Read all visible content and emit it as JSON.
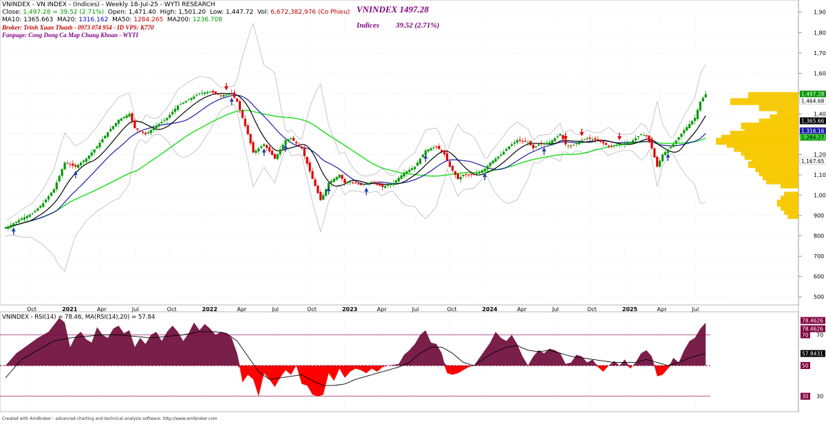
{
  "header": {
    "line1_prefix": "VNINDEX - VN INDEX - (Indices) - Weekly 18-Jul-25 - WYTI RESEARCH",
    "close_label": "Close: ",
    "close_value": "1,497.28  = 39.52  (2.71%)",
    "open": "Open:  1,471.40",
    "high": "High:  1,501.20",
    "low": "Low:  1,447.72",
    "vol_label": "Vol: ",
    "vol_value": "6,672,382,976 (Co Phieu)",
    "ma10_label": "MA10: ",
    "ma10": "1365.663",
    "ma20_label": "MA20: ",
    "ma20": "1316.162",
    "ma50_label": "MA50: ",
    "ma50": "1284.265",
    "ma200_label": "MA200: ",
    "ma200": "1236.708",
    "broker": "Broker: Trinh Xuan Thanh - 0973 074 954 - ID VPS: K770",
    "fanpage": "Fanpage: Cong Dong Ca Map Chung Khoan - WYTI"
  },
  "overlay": {
    "title": "VNINDEX 1497.28",
    "indices_label": "Indices",
    "indices_value": "39.52 (2.71%)"
  },
  "footer": "Created with AmiBroker - advanced charting and technical analysis software. http://www.amibroker.com",
  "colors": {
    "up": "#009900",
    "down": "#dd0000",
    "ma10": "#000000",
    "ma20": "#1a1aa8",
    "ma200": "#33dd33",
    "bands": "#b0b0b0",
    "volume_profile": "#f5c800",
    "rsi_fill_pos": "#7a1f4a",
    "rsi_fill_neg": "#ff0000"
  },
  "chart_data": [
    {
      "type": "candlestick",
      "title": "VNINDEX - VN INDEX - (Indices) - Weekly 18-Jul-25",
      "y_ticks": [
        500,
        600,
        700,
        800,
        900,
        1000,
        1100,
        1200,
        1300,
        1400,
        1500,
        1600,
        1700,
        1800,
        1900
      ],
      "y_tick_labels": [
        "500",
        "600",
        "700",
        "800",
        "900",
        "1,000",
        "1,100",
        "1,200",
        "1,300",
        "1,400",
        "1,500",
        "1,600",
        "1,700",
        "1,800",
        "1,900"
      ],
      "ylim": [
        460,
        1960
      ],
      "x_labels": [
        {
          "t": 9,
          "label": "Oct"
        },
        {
          "t": 22,
          "label": "2021"
        },
        {
          "t": 35,
          "label": "Apr"
        },
        {
          "t": 48,
          "label": "Jul"
        },
        {
          "t": 61,
          "label": "Oct"
        },
        {
          "t": 74,
          "label": "2022"
        },
        {
          "t": 87,
          "label": "Apr"
        },
        {
          "t": 100,
          "label": "Jul"
        },
        {
          "t": 113,
          "label": "Oct"
        },
        {
          "t": 126,
          "label": "2023"
        },
        {
          "t": 139,
          "label": "Apr"
        },
        {
          "t": 152,
          "label": "Jul"
        },
        {
          "t": 165,
          "label": "Oct"
        },
        {
          "t": 178,
          "label": "2024"
        },
        {
          "t": 191,
          "label": "Apr"
        },
        {
          "t": 204,
          "label": "Jul"
        },
        {
          "t": 217,
          "label": "Oct"
        },
        {
          "t": 230,
          "label": "2025"
        },
        {
          "t": 243,
          "label": "Apr"
        },
        {
          "t": 256,
          "label": "Jul"
        }
      ],
      "close_path": [
        [
          0,
          838
        ],
        [
          6,
          885
        ],
        [
          10,
          910
        ],
        [
          14,
          960
        ],
        [
          18,
          1030
        ],
        [
          22,
          1160
        ],
        [
          26,
          1140
        ],
        [
          30,
          1180
        ],
        [
          34,
          1240
        ],
        [
          38,
          1310
        ],
        [
          42,
          1370
        ],
        [
          46,
          1400
        ],
        [
          48,
          1330
        ],
        [
          52,
          1300
        ],
        [
          56,
          1340
        ],
        [
          60,
          1380
        ],
        [
          64,
          1440
        ],
        [
          68,
          1470
        ],
        [
          72,
          1500
        ],
        [
          76,
          1510
        ],
        [
          80,
          1490
        ],
        [
          84,
          1500
        ],
        [
          86,
          1460
        ],
        [
          88,
          1380
        ],
        [
          90,
          1300
        ],
        [
          92,
          1210
        ],
        [
          96,
          1250
        ],
        [
          100,
          1180
        ],
        [
          104,
          1270
        ],
        [
          106,
          1280
        ],
        [
          110,
          1230
        ],
        [
          114,
          1080
        ],
        [
          117,
          975
        ],
        [
          118,
          1000
        ],
        [
          120,
          1060
        ],
        [
          124,
          1100
        ],
        [
          126,
          1060
        ],
        [
          128,
          1065
        ],
        [
          132,
          1050
        ],
        [
          136,
          1065
        ],
        [
          140,
          1040
        ],
        [
          144,
          1060
        ],
        [
          148,
          1110
        ],
        [
          152,
          1140
        ],
        [
          156,
          1220
        ],
        [
          160,
          1240
        ],
        [
          163,
          1200
        ],
        [
          165,
          1140
        ],
        [
          168,
          1080
        ],
        [
          170,
          1100
        ],
        [
          174,
          1100
        ],
        [
          178,
          1130
        ],
        [
          180,
          1160
        ],
        [
          184,
          1200
        ],
        [
          187,
          1240
        ],
        [
          190,
          1270
        ],
        [
          194,
          1260
        ],
        [
          196,
          1230
        ],
        [
          198,
          1250
        ],
        [
          202,
          1260
        ],
        [
          206,
          1300
        ],
        [
          208,
          1250
        ],
        [
          210,
          1240
        ],
        [
          214,
          1270
        ],
        [
          216,
          1280
        ],
        [
          220,
          1270
        ],
        [
          224,
          1240
        ],
        [
          228,
          1250
        ],
        [
          232,
          1260
        ],
        [
          236,
          1300
        ],
        [
          238,
          1290
        ],
        [
          240,
          1230
        ],
        [
          242,
          1140
        ],
        [
          244,
          1200
        ],
        [
          248,
          1250
        ],
        [
          252,
          1320
        ],
        [
          256,
          1380
        ],
        [
          258,
          1460
        ],
        [
          260,
          1497
        ]
      ],
      "ma10": 1365.663,
      "ma20": 1316.162,
      "ma50": 1284.265,
      "ma200": 1236.708,
      "price_labels": [
        1497.28,
        1464.68,
        1365.66,
        1316.16,
        1284.27,
        1167.65
      ],
      "price_label_texts": [
        "1,497.28",
        "1,464.68",
        "1,365.66",
        "1,316.16",
        "1,284.27",
        "1,167.65"
      ],
      "volume_profile": [
        [
          1490,
          140
        ],
        [
          1460,
          190
        ],
        [
          1430,
          110
        ],
        [
          1400,
          60
        ],
        [
          1380,
          80
        ],
        [
          1360,
          110
        ],
        [
          1340,
          160
        ],
        [
          1320,
          150
        ],
        [
          1300,
          190
        ],
        [
          1280,
          215
        ],
        [
          1265,
          230
        ],
        [
          1250,
          200
        ],
        [
          1230,
          180
        ],
        [
          1210,
          160
        ],
        [
          1190,
          150
        ],
        [
          1170,
          130
        ],
        [
          1150,
          140
        ],
        [
          1130,
          120
        ],
        [
          1110,
          110
        ],
        [
          1090,
          100
        ],
        [
          1070,
          90
        ],
        [
          1050,
          50
        ],
        [
          1000,
          40
        ],
        [
          980,
          50
        ],
        [
          960,
          60
        ],
        [
          940,
          50
        ],
        [
          920,
          40
        ],
        [
          900,
          30
        ]
      ]
    },
    {
      "type": "area",
      "title": "VNINDEX - RSI(14) = 78.46, MA(RSI(14),20) = 57.84",
      "rsi": 78.46,
      "rsi_ma": 57.84,
      "levels": [
        30,
        50,
        70
      ],
      "value_labels": [
        "78.4626",
        "78.4626",
        "57.8431",
        "70",
        "50",
        "30"
      ],
      "level_tick_labels": [
        "30",
        "70"
      ],
      "rsi_path": [
        [
          0,
          50
        ],
        [
          4,
          58
        ],
        [
          8,
          63
        ],
        [
          12,
          68
        ],
        [
          16,
          72
        ],
        [
          20,
          81
        ],
        [
          22,
          78
        ],
        [
          24,
          62
        ],
        [
          26,
          69
        ],
        [
          28,
          72
        ],
        [
          30,
          67
        ],
        [
          32,
          65
        ],
        [
          34,
          75
        ],
        [
          36,
          70
        ],
        [
          38,
          68
        ],
        [
          40,
          74
        ],
        [
          42,
          76
        ],
        [
          44,
          71
        ],
        [
          46,
          73
        ],
        [
          48,
          62
        ],
        [
          50,
          68
        ],
        [
          52,
          64
        ],
        [
          54,
          70
        ],
        [
          56,
          72
        ],
        [
          58,
          66
        ],
        [
          60,
          72
        ],
        [
          62,
          76
        ],
        [
          64,
          72
        ],
        [
          66,
          66
        ],
        [
          68,
          71
        ],
        [
          70,
          78
        ],
        [
          72,
          73
        ],
        [
          74,
          77
        ],
        [
          76,
          74
        ],
        [
          78,
          70
        ],
        [
          80,
          72
        ],
        [
          82,
          71
        ],
        [
          84,
          68
        ],
        [
          86,
          58
        ],
        [
          88,
          39
        ],
        [
          90,
          44
        ],
        [
          92,
          41
        ],
        [
          94,
          30
        ],
        [
          96,
          45
        ],
        [
          98,
          41
        ],
        [
          100,
          36
        ],
        [
          102,
          42
        ],
        [
          104,
          47
        ],
        [
          106,
          44
        ],
        [
          108,
          50
        ],
        [
          110,
          38
        ],
        [
          112,
          37
        ],
        [
          114,
          31
        ],
        [
          116,
          30
        ],
        [
          118,
          31
        ],
        [
          120,
          45
        ],
        [
          122,
          40
        ],
        [
          124,
          48
        ],
        [
          126,
          42
        ],
        [
          128,
          46
        ],
        [
          130,
          48
        ],
        [
          132,
          47
        ],
        [
          134,
          45
        ],
        [
          136,
          48
        ],
        [
          138,
          46
        ],
        [
          140,
          49
        ],
        [
          142,
          50
        ],
        [
          146,
          51
        ],
        [
          148,
          57
        ],
        [
          150,
          60
        ],
        [
          152,
          64
        ],
        [
          154,
          70
        ],
        [
          156,
          73
        ],
        [
          158,
          65
        ],
        [
          160,
          64
        ],
        [
          162,
          58
        ],
        [
          164,
          45
        ],
        [
          166,
          44
        ],
        [
          168,
          45
        ],
        [
          170,
          47
        ],
        [
          172,
          49
        ],
        [
          174,
          50
        ],
        [
          176,
          55
        ],
        [
          178,
          60
        ],
        [
          180,
          65
        ],
        [
          182,
          72
        ],
        [
          184,
          68
        ],
        [
          186,
          66
        ],
        [
          188,
          70
        ],
        [
          190,
          64
        ],
        [
          192,
          56
        ],
        [
          194,
          50
        ],
        [
          196,
          56
        ],
        [
          198,
          60
        ],
        [
          200,
          58
        ],
        [
          202,
          61
        ],
        [
          204,
          60
        ],
        [
          206,
          58
        ],
        [
          208,
          51
        ],
        [
          210,
          52
        ],
        [
          212,
          57
        ],
        [
          214,
          56
        ],
        [
          216,
          52
        ],
        [
          218,
          54
        ],
        [
          220,
          49
        ],
        [
          222,
          46
        ],
        [
          224,
          50
        ],
        [
          226,
          53
        ],
        [
          228,
          50
        ],
        [
          230,
          54
        ],
        [
          232,
          48
        ],
        [
          234,
          52
        ],
        [
          236,
          58
        ],
        [
          238,
          60
        ],
        [
          240,
          56
        ],
        [
          242,
          43
        ],
        [
          244,
          44
        ],
        [
          246,
          48
        ],
        [
          248,
          55
        ],
        [
          250,
          52
        ],
        [
          252,
          60
        ],
        [
          254,
          66
        ],
        [
          256,
          68
        ],
        [
          258,
          74
        ],
        [
          260,
          78
        ]
      ],
      "rsi_ma_path": [
        [
          0,
          42
        ],
        [
          6,
          54
        ],
        [
          12,
          60
        ],
        [
          18,
          66
        ],
        [
          24,
          68
        ],
        [
          30,
          69
        ],
        [
          36,
          70
        ],
        [
          42,
          70
        ],
        [
          48,
          69
        ],
        [
          54,
          68
        ],
        [
          60,
          69
        ],
        [
          66,
          70
        ],
        [
          72,
          72
        ],
        [
          78,
          72
        ],
        [
          82,
          71
        ],
        [
          86,
          66
        ],
        [
          90,
          56
        ],
        [
          94,
          46
        ],
        [
          98,
          41
        ],
        [
          102,
          42
        ],
        [
          106,
          43
        ],
        [
          110,
          44
        ],
        [
          114,
          40
        ],
        [
          118,
          37
        ],
        [
          122,
          37
        ],
        [
          126,
          38
        ],
        [
          130,
          41
        ],
        [
          134,
          43
        ],
        [
          138,
          45
        ],
        [
          142,
          47
        ],
        [
          146,
          49
        ],
        [
          150,
          52
        ],
        [
          154,
          58
        ],
        [
          158,
          62
        ],
        [
          162,
          62
        ],
        [
          166,
          58
        ],
        [
          170,
          52
        ],
        [
          174,
          50
        ],
        [
          178,
          55
        ],
        [
          182,
          59
        ],
        [
          186,
          62
        ],
        [
          190,
          63
        ],
        [
          194,
          60
        ],
        [
          198,
          59
        ],
        [
          202,
          60
        ],
        [
          206,
          58
        ],
        [
          210,
          56
        ],
        [
          214,
          55
        ],
        [
          218,
          54
        ],
        [
          222,
          53
        ],
        [
          226,
          52
        ],
        [
          230,
          52
        ],
        [
          234,
          52
        ],
        [
          238,
          54
        ],
        [
          242,
          52
        ],
        [
          246,
          50
        ],
        [
          250,
          52
        ],
        [
          254,
          55
        ],
        [
          258,
          57
        ],
        [
          260,
          57.84
        ]
      ]
    }
  ]
}
